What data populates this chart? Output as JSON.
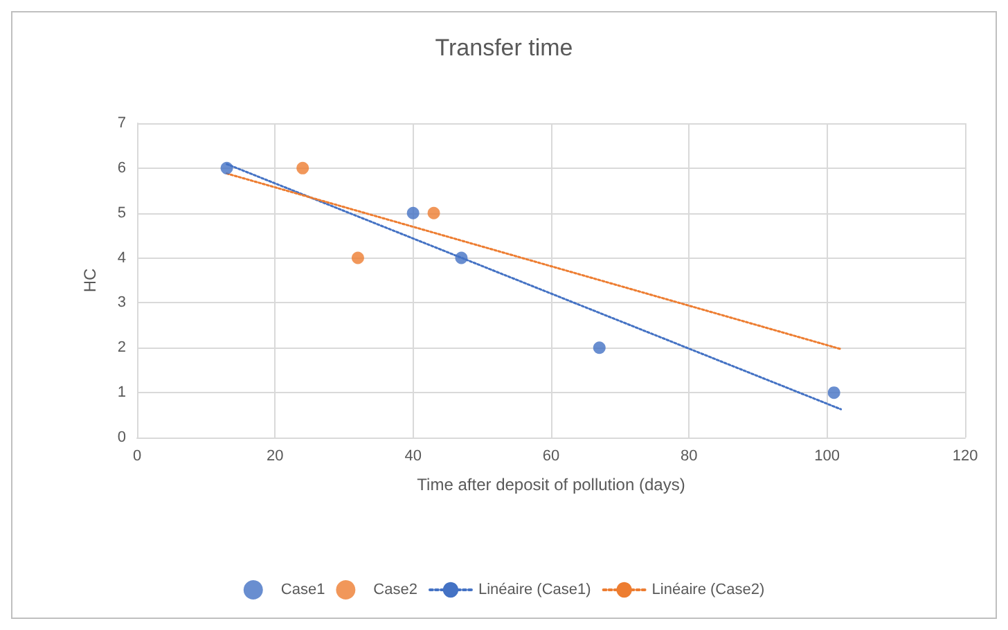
{
  "chart_data": {
    "type": "scatter",
    "title": "Transfer time",
    "xlabel": "Time after deposit of pollution (days)",
    "ylabel": "HC",
    "xlim": [
      0,
      120
    ],
    "xticks": [
      0,
      20,
      40,
      60,
      80,
      100,
      120
    ],
    "ylim": [
      0,
      7
    ],
    "yticks": [
      0,
      1,
      2,
      3,
      4,
      5,
      6,
      7
    ],
    "grid": true,
    "legend": "bottom",
    "marker": "circle",
    "series": [
      {
        "name": "Case1",
        "color": "#4472c4",
        "x": [
          13,
          40,
          47,
          67,
          101
        ],
        "values": [
          6,
          5,
          4,
          2,
          1
        ]
      },
      {
        "name": "Case2",
        "color": "#ed7d31",
        "x": [
          24,
          32,
          43
        ],
        "values": [
          6,
          4,
          5
        ]
      },
      {
        "name": "Linéaire (Case1)",
        "type": "line",
        "line_style": "dotted",
        "marker": "none",
        "color": "#4472c4",
        "x": [
          13,
          102
        ],
        "values": [
          6.09,
          0.63
        ]
      },
      {
        "name": "Linéaire (Case2)",
        "type": "line",
        "line_style": "dotted",
        "marker": "none",
        "color": "#ed7d31",
        "x": [
          13,
          102
        ],
        "values": [
          5.88,
          1.97
        ]
      }
    ]
  }
}
